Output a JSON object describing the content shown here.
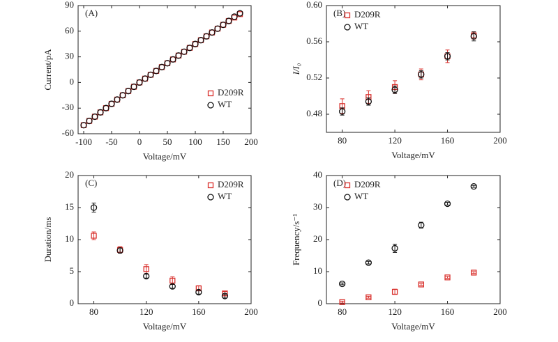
{
  "chart_data": [
    {
      "type": "scatter",
      "label": "(A)",
      "xlabel": "Voltage/mV",
      "ylabel": "Current/pA",
      "xlim": [
        -110,
        200
      ],
      "xticks": [
        -100,
        -50,
        0,
        50,
        100,
        150,
        200
      ],
      "ylim": [
        -60,
        90
      ],
      "yticks": [
        -60,
        -30,
        0,
        30,
        60,
        90
      ],
      "legend": "lower right",
      "x": [
        -100,
        -90,
        -80,
        -70,
        -60,
        -50,
        -40,
        -30,
        -20,
        -10,
        0,
        10,
        20,
        30,
        40,
        50,
        60,
        70,
        80,
        90,
        100,
        110,
        120,
        130,
        140,
        150,
        160,
        170,
        180
      ],
      "series": [
        {
          "name": "D209R",
          "color": "#d9302c",
          "marker": "square",
          "values": [
            -50,
            -45,
            -40,
            -35,
            -30,
            -25,
            -20,
            -15,
            -10,
            -5,
            0,
            4.5,
            9,
            13.5,
            18,
            22.5,
            27,
            31.5,
            36,
            40.5,
            45,
            49.5,
            54,
            58.5,
            63,
            67.5,
            72,
            76,
            80
          ]
        },
        {
          "name": "WT",
          "color": "#111111",
          "marker": "circle",
          "values": [
            -50,
            -45,
            -40,
            -35,
            -30,
            -25,
            -20,
            -15,
            -10,
            -5,
            0,
            4.5,
            9,
            13.5,
            18,
            22.5,
            27,
            31.5,
            36,
            40.5,
            45,
            49.5,
            54,
            58.5,
            63,
            67.5,
            72,
            77,
            81
          ]
        }
      ]
    },
    {
      "type": "scatter",
      "label": "(B)",
      "xlabel": "Voltage/mV",
      "ylabel": "I/I₀",
      "xlim": [
        68,
        200
      ],
      "xticks": [
        80,
        120,
        160,
        200
      ],
      "ylim": [
        0.46,
        0.6
      ],
      "yticks": [
        0.48,
        0.52,
        0.56,
        {
          "value": 0.6,
          "label": "0.60"
        }
      ],
      "legend": "upper left",
      "x": [
        80,
        100,
        120,
        140,
        160,
        180
      ],
      "series": [
        {
          "name": "D209R",
          "color": "#d9302c",
          "marker": "square",
          "values": [
            0.489,
            0.499,
            0.51,
            0.524,
            0.544,
            0.567
          ],
          "errors": [
            0.008,
            0.007,
            0.007,
            0.006,
            0.007,
            0.004
          ]
        },
        {
          "name": "WT",
          "color": "#111111",
          "marker": "circle",
          "values": [
            0.483,
            0.494,
            0.507,
            0.524,
            0.544,
            0.566
          ],
          "errors": [
            0.004,
            0.004,
            0.004,
            0.004,
            0.004,
            0.005
          ]
        }
      ]
    },
    {
      "type": "scatter",
      "label": "(C)",
      "xlabel": "Voltage/mV",
      "ylabel": "Duration/ms",
      "xlim": [
        68,
        200
      ],
      "xticks": [
        80,
        120,
        160,
        200
      ],
      "ylim": [
        0,
        20
      ],
      "yticks": [
        0,
        5,
        10,
        15,
        20
      ],
      "legend": "upper right",
      "x": [
        80,
        100,
        120,
        140,
        160,
        180
      ],
      "series": [
        {
          "name": "D209R",
          "color": "#d9302c",
          "marker": "square",
          "values": [
            10.6,
            8.4,
            5.4,
            3.6,
            2.4,
            1.6
          ],
          "errors": [
            0.6,
            0.5,
            0.7,
            0.6,
            0.4,
            0.3
          ]
        },
        {
          "name": "WT",
          "color": "#111111",
          "marker": "circle",
          "values": [
            15.0,
            8.3,
            4.3,
            2.7,
            1.8,
            1.2
          ],
          "errors": [
            0.7,
            0.4,
            0.3,
            0.3,
            0.3,
            0.3
          ]
        }
      ]
    },
    {
      "type": "scatter",
      "label": "(D)",
      "xlabel": "Voltage/mV",
      "ylabel": "Frequency/s⁻¹",
      "xlim": [
        68,
        200
      ],
      "xticks": [
        80,
        120,
        160,
        200
      ],
      "ylim": [
        0,
        40
      ],
      "yticks": [
        0,
        10,
        20,
        30,
        40
      ],
      "legend": "upper left",
      "x": [
        80,
        100,
        120,
        140,
        160,
        180
      ],
      "series": [
        {
          "name": "D209R",
          "color": "#d9302c",
          "marker": "square",
          "values": [
            0.5,
            2.0,
            3.7,
            6.0,
            8.2,
            9.7
          ],
          "errors": [
            0.3,
            0.3,
            0.8,
            0.3,
            0.3,
            0.3
          ]
        },
        {
          "name": "WT",
          "color": "#111111",
          "marker": "circle",
          "values": [
            6.2,
            12.8,
            17.3,
            24.5,
            31.2,
            36.6
          ],
          "errors": [
            0.3,
            0.4,
            1.3,
            0.9,
            0.4,
            0.3
          ]
        }
      ]
    }
  ]
}
